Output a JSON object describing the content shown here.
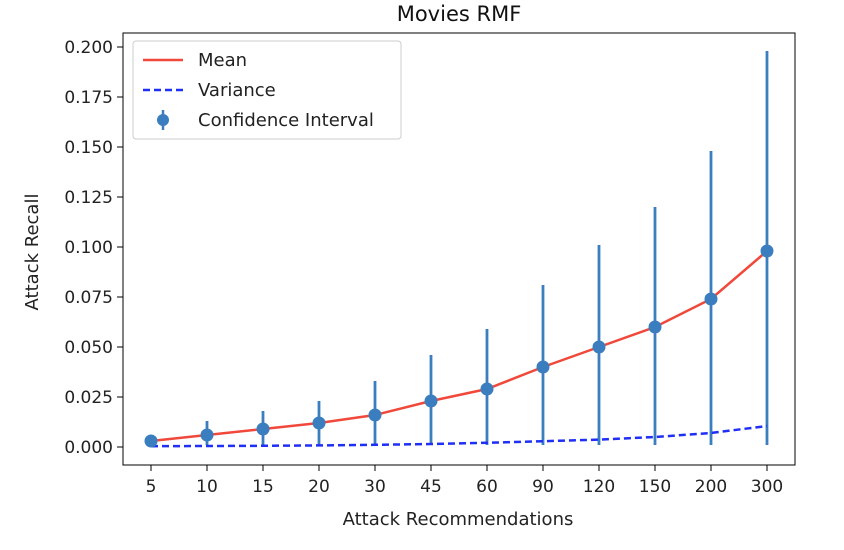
{
  "chart_data": {
    "type": "line",
    "title": "Movies RMF",
    "xlabel": "Attack Recommendations",
    "ylabel": "Attack Recall",
    "categories": [
      "5",
      "10",
      "15",
      "20",
      "30",
      "45",
      "60",
      "90",
      "120",
      "150",
      "200",
      "300"
    ],
    "ylim": [
      -0.009,
      0.207
    ],
    "yticks": [
      0.0,
      0.025,
      0.05,
      0.075,
      0.1,
      0.125,
      0.15,
      0.175,
      0.2
    ],
    "ytick_labels": [
      "0.000",
      "0.025",
      "0.050",
      "0.075",
      "0.100",
      "0.125",
      "0.150",
      "0.175",
      "0.200"
    ],
    "grid": false,
    "legend_position": "top-left",
    "series": [
      {
        "name": "Mean",
        "style": "solid",
        "color": "#f0483a",
        "values": [
          0.003,
          0.006,
          0.009,
          0.012,
          0.016,
          0.023,
          0.029,
          0.04,
          0.05,
          0.06,
          0.074,
          0.098
        ]
      },
      {
        "name": "Variance",
        "style": "dashed",
        "color": "#1f2ff5",
        "values": [
          0.0004,
          0.0005,
          0.0006,
          0.0008,
          0.0011,
          0.0015,
          0.0021,
          0.0029,
          0.0037,
          0.005,
          0.007,
          0.0105
        ]
      },
      {
        "name": "Confidence Interval",
        "style": "errorbar",
        "color": "#3a7ebf",
        "values": [
          0.003,
          0.006,
          0.009,
          0.012,
          0.016,
          0.023,
          0.029,
          0.04,
          0.05,
          0.06,
          0.074,
          0.098
        ],
        "lower": [
          0.001,
          0.001,
          0.001,
          0.001,
          0.001,
          0.001,
          0.001,
          0.001,
          0.001,
          0.001,
          0.001,
          0.001
        ],
        "upper": [
          0.005,
          0.013,
          0.018,
          0.023,
          0.033,
          0.046,
          0.059,
          0.081,
          0.101,
          0.12,
          0.148,
          0.198
        ]
      }
    ]
  }
}
